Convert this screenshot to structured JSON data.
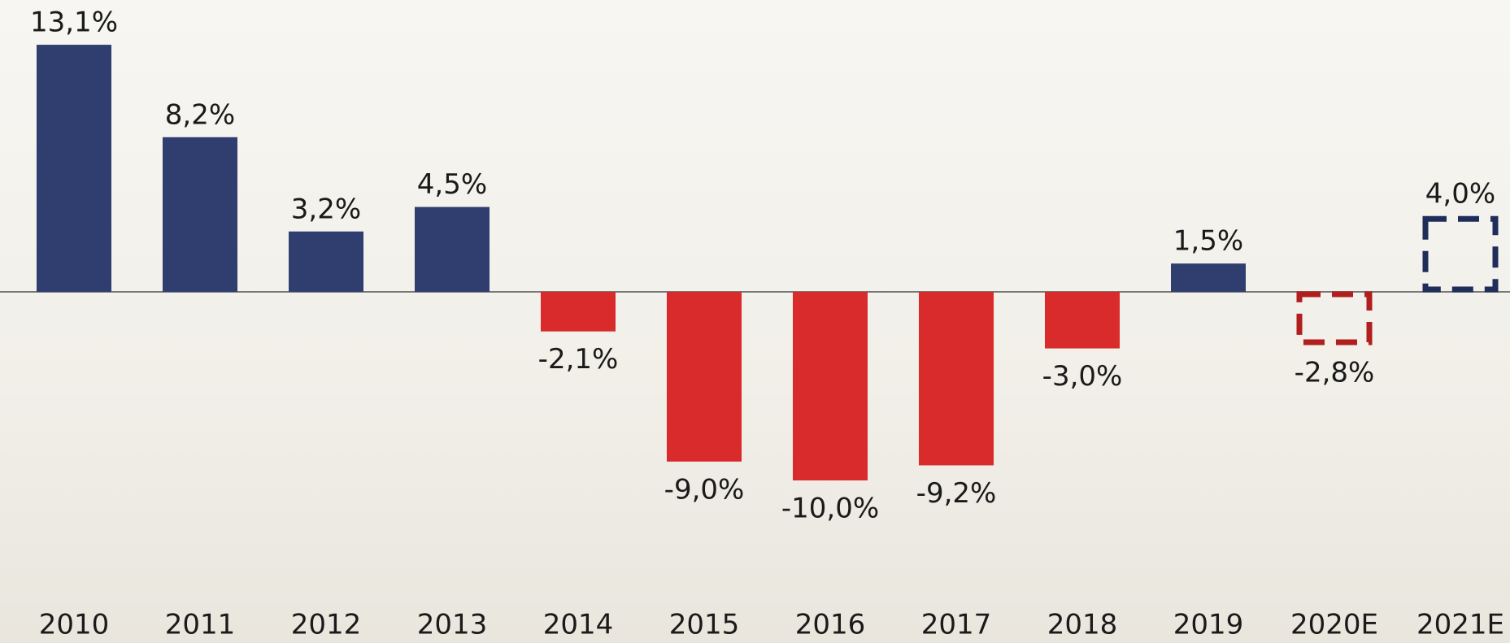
{
  "chart_data": {
    "type": "bar",
    "categories": [
      "2010",
      "2011",
      "2012",
      "2013",
      "2014",
      "2015",
      "2016",
      "2017",
      "2018",
      "2019",
      "2020E",
      "2021E"
    ],
    "values": [
      13.1,
      8.2,
      3.2,
      4.5,
      -2.1,
      -9.0,
      -10.0,
      -9.2,
      -3.0,
      1.5,
      -2.8,
      4.0
    ],
    "value_labels": [
      "13,1%",
      "8,2%",
      "3,2%",
      "4,5%",
      "-2,1%",
      "-9,0%",
      "-10,0%",
      "-9,2%",
      "-3,0%",
      "1,5%",
      "-2,8%",
      "4,0%"
    ],
    "colors": [
      "#2f3e6e",
      "#2f3e6e",
      "#2f3e6e",
      "#2f3e6e",
      "#d92b2b",
      "#d92b2b",
      "#d92b2b",
      "#d92b2b",
      "#d92b2b",
      "#2f3e6e",
      "#b01e1e",
      "#1f2d5a"
    ],
    "dashed": [
      false,
      false,
      false,
      false,
      false,
      false,
      false,
      false,
      false,
      false,
      true,
      true
    ]
  }
}
